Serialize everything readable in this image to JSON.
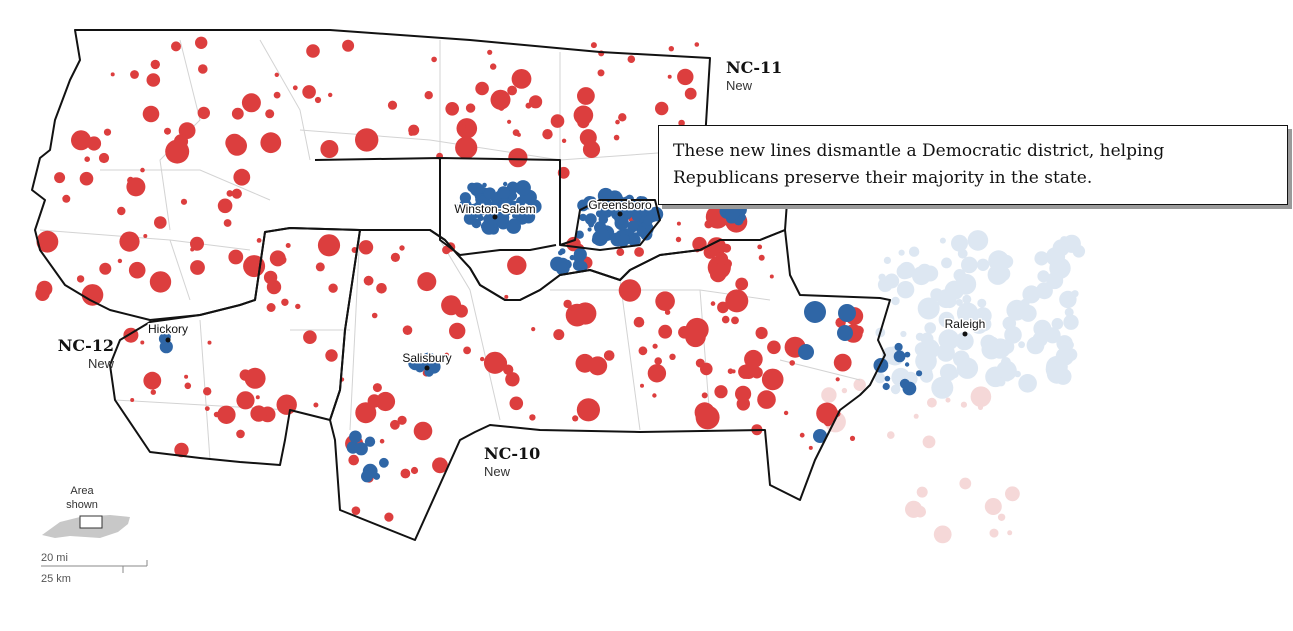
{
  "map": {
    "colors": {
      "republican": "#dc3e3e",
      "democrat": "#2f66a6",
      "faded_republican": "#f5d8d8",
      "faded_democrat": "#dde7f2",
      "district_outline": "#121212",
      "county_line": "#d3d3d3"
    },
    "districts": [
      {
        "name": "NC-11",
        "sub": "New"
      },
      {
        "name": "NC-12",
        "sub": "New"
      },
      {
        "name": "NC-10",
        "sub": "New"
      }
    ],
    "cities": [
      "Winston-Salem",
      "Greensboro",
      "Raleigh",
      "Hickory",
      "Salisbury"
    ],
    "inset": {
      "title_line1": "Area",
      "title_line2": "shown",
      "icon": "north-carolina-locator-icon"
    },
    "scale": {
      "miles": "20 mi",
      "kilometers": "25 km"
    }
  },
  "callout": {
    "text": "These new lines dismantle a Democratic district, helping Republicans preserve their majority in the state."
  }
}
